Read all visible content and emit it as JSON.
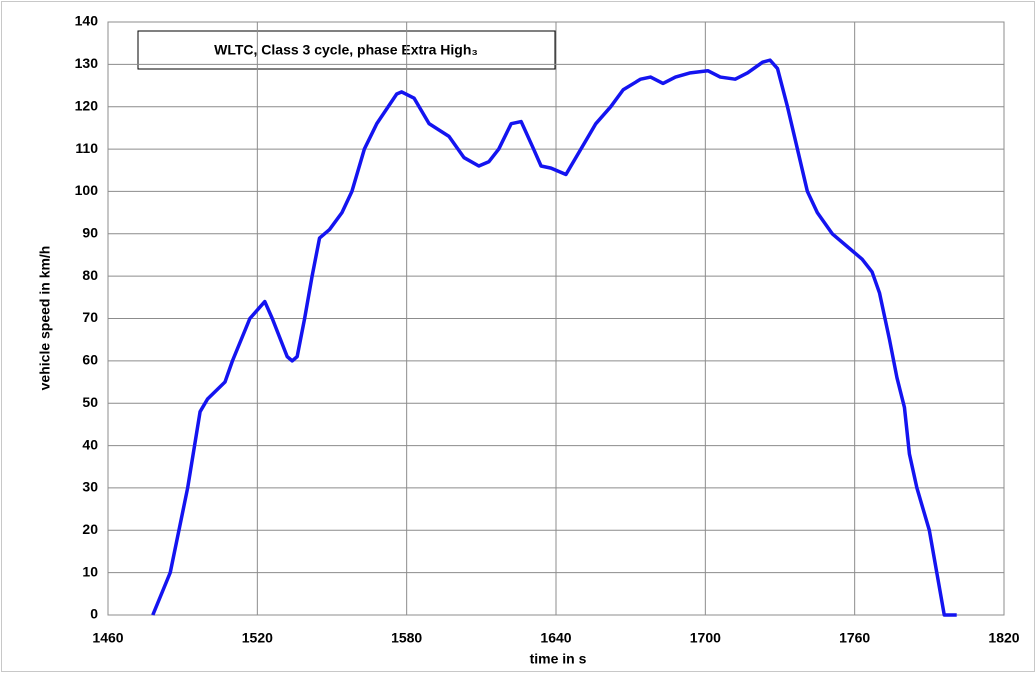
{
  "chart_data": {
    "type": "line",
    "annotation": "WLTC, Class 3 cycle, phase Extra High₃",
    "xlabel": "time in s",
    "ylabel": "vehicle speed in km/h",
    "x": [
      1478,
      1485,
      1492,
      1497,
      1500,
      1507,
      1510,
      1517,
      1523,
      1526,
      1532,
      1534,
      1536,
      1539,
      1542,
      1545,
      1549,
      1554,
      1558,
      1563,
      1568,
      1576,
      1578,
      1583,
      1589,
      1597,
      1603,
      1609,
      1613,
      1617,
      1622,
      1626,
      1631,
      1634,
      1638,
      1644,
      1646,
      1652,
      1656,
      1662,
      1667,
      1674,
      1678,
      1683,
      1688,
      1694,
      1701,
      1706,
      1712,
      1717,
      1723,
      1726,
      1729,
      1733,
      1737,
      1741,
      1745,
      1751,
      1757,
      1763,
      1767,
      1770,
      1774,
      1777,
      1780,
      1782,
      1785,
      1790,
      1793,
      1796,
      1801
    ],
    "series": [
      {
        "name": "vehicle speed",
        "color": "#1414f0",
        "values": [
          0,
          10,
          30,
          48,
          51,
          55,
          60,
          70,
          74,
          70,
          61,
          60,
          61,
          70,
          80,
          89,
          91,
          95,
          100,
          110,
          116,
          123,
          123.5,
          122,
          116,
          113,
          108,
          106,
          107,
          110,
          116,
          116.5,
          110,
          106,
          105.5,
          104,
          106,
          112,
          116,
          120,
          124,
          126.5,
          127,
          125.5,
          127,
          128,
          128.5,
          127,
          126.5,
          128,
          130.5,
          131,
          129,
          120,
          110,
          100,
          95,
          90,
          87,
          84,
          81,
          76,
          65,
          56,
          49,
          38,
          30,
          20,
          10,
          0,
          0
        ]
      }
    ],
    "xlim": [
      1460,
      1820
    ],
    "xticks": [
      1460,
      1520,
      1580,
      1640,
      1700,
      1760,
      1820
    ],
    "ylim": [
      0,
      140
    ],
    "yticks": [
      0,
      10,
      20,
      30,
      40,
      50,
      60,
      70,
      80,
      90,
      100,
      110,
      120,
      130,
      140
    ],
    "grid": true
  }
}
